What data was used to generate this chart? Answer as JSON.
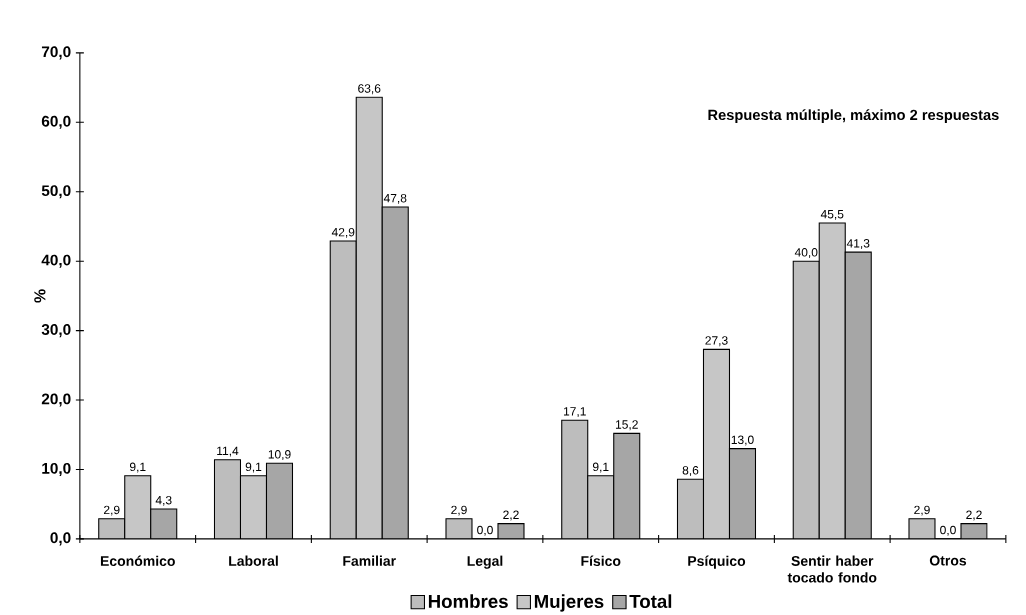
{
  "chart_data": {
    "type": "bar",
    "ylabel": "%",
    "annotations": [
      "Respuesta múltiple, máximo 2 respuestas"
    ],
    "categories": [
      "Económico",
      "Laboral",
      "Familiar",
      "Legal",
      "Físico",
      "Psíquico",
      "Sentir haber tocado fondo",
      "Otros"
    ],
    "series": [
      {
        "name": "Hombres",
        "color": "#bdbdbd",
        "values": [
          2.9,
          11.4,
          42.9,
          2.9,
          17.1,
          8.6,
          40.0,
          2.9
        ],
        "value_labels": [
          "2,9",
          "11,4",
          "42,9",
          "2,9",
          "17,1",
          "8,6",
          "40,0",
          "2,9"
        ]
      },
      {
        "name": "Mujeres",
        "color": "#c6c6c6",
        "values": [
          9.1,
          9.1,
          63.6,
          0.0,
          9.1,
          27.3,
          45.5,
          0.0
        ],
        "value_labels": [
          "9,1",
          "9,1",
          "63,6",
          "0,0",
          "9,1",
          "27,3",
          "45,5",
          "0,0"
        ]
      },
      {
        "name": "Total",
        "color": "#a6a6a6",
        "values": [
          4.3,
          10.9,
          47.8,
          2.2,
          15.2,
          13.0,
          41.3,
          2.2
        ],
        "value_labels": [
          "4,3",
          "10,9",
          "47,8",
          "2,2",
          "15,2",
          "13,0",
          "41,3",
          "2,2"
        ]
      }
    ],
    "ylim": [
      0,
      70
    ],
    "yticks": [
      {
        "value": 0,
        "label": "0,0"
      },
      {
        "value": 10,
        "label": "10,0"
      },
      {
        "value": 20,
        "label": "20,0"
      },
      {
        "value": 30,
        "label": "30,0"
      },
      {
        "value": 40,
        "label": "40,0"
      },
      {
        "value": 50,
        "label": "50,0"
      },
      {
        "value": 60,
        "label": "60,0"
      },
      {
        "value": 70,
        "label": "70,0"
      }
    ],
    "legend": "bottom"
  }
}
